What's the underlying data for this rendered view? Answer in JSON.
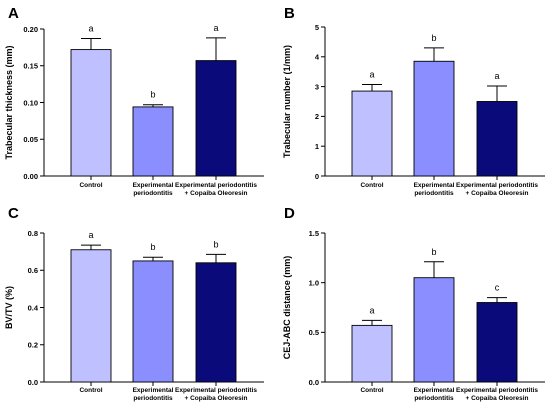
{
  "figure": {
    "categories": [
      [
        "Control"
      ],
      [
        "Experimental",
        "periodontitis"
      ],
      [
        "Experimental periodontitis",
        "+ Copaiba Oleoresin"
      ]
    ],
    "colors": [
      "#bfc0ff",
      "#8a8efe",
      "#0a0a7a"
    ]
  },
  "chart_data": [
    {
      "panel": "A",
      "type": "bar",
      "ylabel": "Trabecular thickness (mm)",
      "ylim": [
        0,
        0.2
      ],
      "yticks": [
        "0.00",
        "0.05",
        "0.10",
        "0.15",
        "0.20"
      ],
      "values": [
        0.172,
        0.094,
        0.157
      ],
      "errors": [
        0.015,
        0.003,
        0.031
      ],
      "labels": [
        "a",
        "b",
        "a"
      ]
    },
    {
      "panel": "B",
      "type": "bar",
      "ylabel": "Trabecular number (1/mm)",
      "ylim": [
        0,
        5
      ],
      "yticks": [
        "0",
        "1",
        "2",
        "3",
        "4",
        "5"
      ],
      "values": [
        2.85,
        3.85,
        2.5
      ],
      "errors": [
        0.22,
        0.45,
        0.52
      ],
      "labels": [
        "a",
        "b",
        "a"
      ]
    },
    {
      "panel": "C",
      "type": "bar",
      "ylabel": "BV/TV (%)",
      "ylim": [
        0,
        0.8
      ],
      "yticks": [
        "0.0",
        "0.2",
        "0.4",
        "0.6",
        "0.8"
      ],
      "values": [
        0.71,
        0.65,
        0.64
      ],
      "errors": [
        0.025,
        0.02,
        0.045
      ],
      "labels": [
        "a",
        "b",
        "b"
      ]
    },
    {
      "panel": "D",
      "type": "bar",
      "ylabel": "CEJ-ABC distance (mm)",
      "ylim": [
        0,
        1.5
      ],
      "yticks": [
        "0.0",
        "0.5",
        "1.0",
        "1.5"
      ],
      "values": [
        0.57,
        1.05,
        0.8
      ],
      "errors": [
        0.05,
        0.16,
        0.05
      ],
      "labels": [
        "a",
        "b",
        "c"
      ]
    }
  ]
}
